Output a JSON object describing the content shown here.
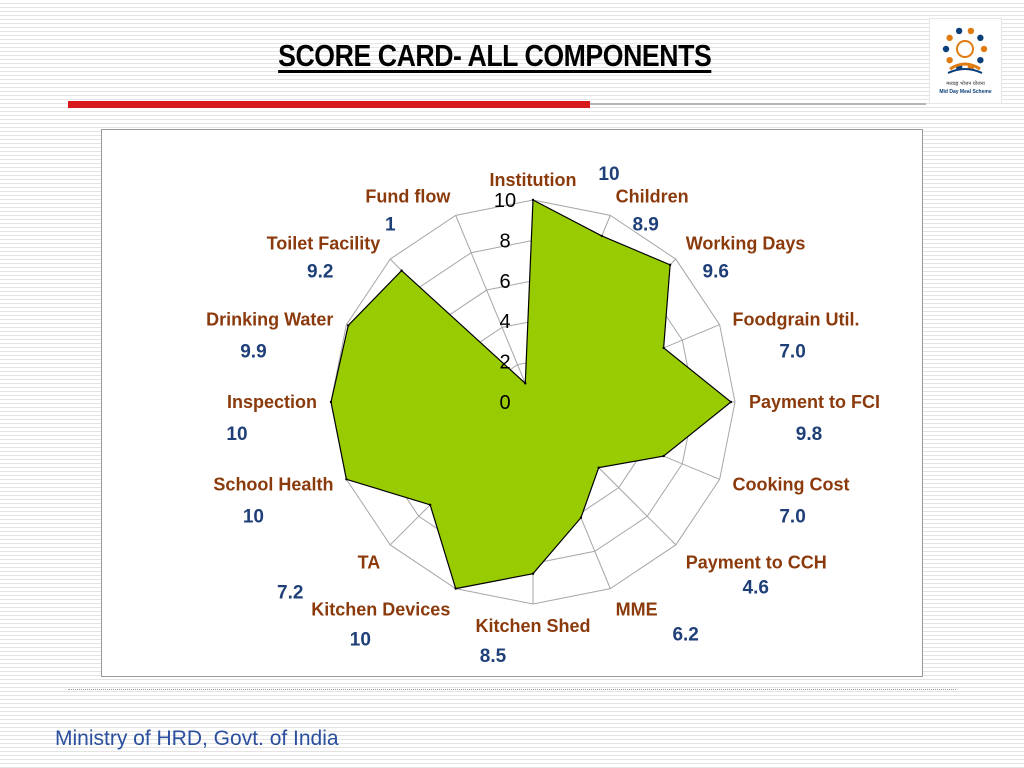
{
  "slide": {
    "title": "SCORE CARD- ALL COMPONENTS",
    "footer": "Ministry of HRD, Govt. of India",
    "logo": {
      "icon": "mid-day-meal-logo",
      "caption_hindi": "मध्याह्न भोजन योजना",
      "caption_english": "Mid Day Meal Scheme"
    }
  },
  "colors": {
    "title_underline": "#d7191c",
    "fill": "#99cc00",
    "outline": "#000000",
    "grid": "#a6a6a6",
    "category_label": "#8b3a0c",
    "value_label": "#1f3f78",
    "footer_text": "#2a4f9e"
  },
  "chart_data": {
    "type": "radar",
    "ylim": [
      0,
      10
    ],
    "ticks": [
      "0",
      "2",
      "4",
      "6",
      "8",
      "10"
    ],
    "grid": true,
    "legend": "none",
    "categories": [
      "Institution",
      "Children",
      "Working Days",
      "Foodgrain Util.",
      "Payment to FCI",
      "Cooking Cost",
      "Payment to CCH",
      "MME",
      "Kitchen Shed",
      "Kitchen Devices",
      "TA",
      "School Health",
      "Inspection",
      "Drinking Water",
      "Toilet Facility",
      "Fund flow"
    ],
    "values": [
      10,
      8.9,
      9.6,
      7.0,
      9.8,
      7.0,
      4.6,
      6.2,
      8.5,
      10,
      7.2,
      10,
      10,
      9.9,
      9.2,
      1
    ],
    "value_labels": [
      "10",
      "8.9",
      "9.6",
      "7.0",
      "9.8",
      "7.0",
      "4.6",
      "6.2",
      "8.5",
      "10",
      "7.2",
      "10",
      "10",
      "9.9",
      "9.2",
      "1"
    ]
  }
}
